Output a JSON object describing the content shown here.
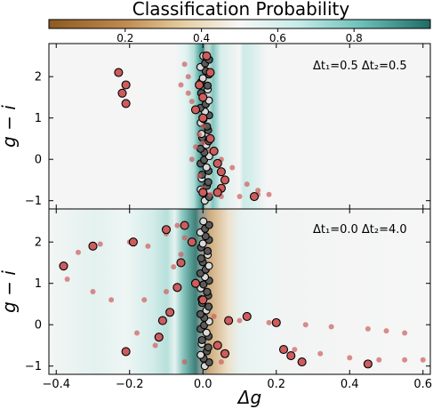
{
  "colorbar": {
    "title": "Classification Probability",
    "ticks": [
      0.2,
      0.4,
      0.6,
      0.8
    ],
    "tick_labels": [
      "0.2",
      "0.4",
      "0.6",
      "0.8"
    ],
    "range": [
      0.0,
      1.0
    ],
    "colormap_stops": [
      "#8c5a20",
      "#c08a50",
      "#e6cda0",
      "#f7f7f7",
      "#c8ece8",
      "#6cc0b8",
      "#1f6b66"
    ]
  },
  "panels": [
    {
      "id": "top",
      "annotation": "Δt₁=0.5 Δt₂=0.5",
      "ylabel": "g − i"
    },
    {
      "id": "bottom",
      "annotation": "Δt₁=0.0 Δt₂=4.0",
      "ylabel": "g − i"
    }
  ],
  "xlabel": "Δg",
  "x_tick_labels": [
    "−0.4",
    "−0.2",
    "0.0",
    "0.2",
    "0.4",
    "0.6"
  ],
  "y_tick_labels": [
    "−1",
    "0",
    "1",
    "2"
  ],
  "colors": {
    "track": "#cd5c5c",
    "marker_edge": "#000000",
    "light_marker": "#d9d9d9"
  },
  "chart_data": {
    "type": "scatter",
    "xlim": [
      -0.42,
      0.62
    ],
    "ylim": [
      -1.2,
      2.8
    ],
    "x_ticks": [
      -0.4,
      -0.2,
      0.0,
      0.2,
      0.4,
      0.6
    ],
    "y_ticks": [
      -1,
      0,
      1,
      2
    ],
    "panels": [
      {
        "annotation": "Δt₁=0.5 Δt₂=0.5",
        "background": "classification probability map; low-probability band near Δg≈0, high-probability band at Δg≈-0.05 to 0.02 and Δg≈0.14",
        "track_points": [
          [
            -0.05,
            2.3
          ],
          [
            -0.04,
            2.0
          ],
          [
            -0.06,
            1.8
          ],
          [
            -0.04,
            1.6
          ],
          [
            -0.03,
            1.4
          ],
          [
            -0.02,
            1.2
          ],
          [
            0.0,
            1.0
          ],
          [
            0.0,
            0.8
          ],
          [
            -0.01,
            0.6
          ],
          [
            0.0,
            0.4
          ],
          [
            0.02,
            0.2
          ],
          [
            0.05,
            0.0
          ],
          [
            0.08,
            -0.2
          ],
          [
            0.12,
            -0.6
          ],
          [
            0.15,
            -0.75
          ],
          [
            0.18,
            -0.85
          ],
          [
            -0.02,
            0.3
          ],
          [
            -0.03,
            0.0
          ],
          [
            -0.01,
            -0.4
          ],
          [
            0.0,
            -0.7
          ],
          [
            0.02,
            -0.85
          ],
          [
            0.05,
            -0.9
          ],
          [
            0.1,
            -0.9
          ],
          [
            0.15,
            -0.85
          ]
        ],
        "circled_points": [
          [
            0.01,
            2.5
          ],
          [
            0.02,
            2.1
          ],
          [
            -0.01,
            1.8
          ],
          [
            0.0,
            1.5
          ],
          [
            -0.02,
            1.2
          ],
          [
            0.0,
            1.0
          ],
          [
            0.02,
            0.5
          ],
          [
            0.03,
            0.2
          ],
          [
            0.04,
            -0.1
          ],
          [
            0.05,
            -0.3
          ],
          [
            0.06,
            -0.5
          ],
          [
            0.05,
            -0.7
          ],
          [
            0.04,
            -0.8
          ],
          [
            0.0,
            -0.8
          ],
          [
            0.14,
            -0.9
          ],
          [
            -0.21,
            1.35
          ],
          [
            -0.22,
            1.6
          ],
          [
            -0.21,
            1.8
          ],
          [
            -0.23,
            2.1
          ]
        ]
      },
      {
        "annotation": "Δt₁=0.0 Δt₂=4.0",
        "background": "classification probability map; brown band near Δg≈0.01-0.08, teal bands around Δg≈-0.07 to -0.02",
        "track_points": [
          [
            -0.38,
            1.4
          ],
          [
            -0.34,
            1.75
          ],
          [
            -0.28,
            1.95
          ],
          [
            -0.2,
            2.0
          ],
          [
            -0.15,
            1.9
          ],
          [
            -0.1,
            2.2
          ],
          [
            -0.07,
            2.4
          ],
          [
            -0.05,
            2.1
          ],
          [
            -0.06,
            1.7
          ],
          [
            -0.08,
            1.4
          ],
          [
            -0.1,
            0.8
          ],
          [
            -0.16,
            0.6
          ],
          [
            -0.25,
            0.6
          ],
          [
            -0.3,
            0.8
          ],
          [
            -0.37,
            1.1
          ],
          [
            0.03,
            0.2
          ],
          [
            0.1,
            0.1
          ],
          [
            0.18,
            0.05
          ],
          [
            0.28,
            0.0
          ],
          [
            0.35,
            -0.05
          ],
          [
            0.45,
            -0.1
          ],
          [
            0.5,
            -0.15
          ],
          [
            0.55,
            -0.2
          ],
          [
            0.25,
            -0.6
          ],
          [
            0.32,
            -0.7
          ],
          [
            0.4,
            -0.8
          ],
          [
            0.48,
            -0.85
          ],
          [
            0.55,
            -0.85
          ],
          [
            0.6,
            -0.85
          ],
          [
            0.05,
            -0.9
          ],
          [
            -0.05,
            -0.9
          ],
          [
            -0.13,
            -0.5
          ],
          [
            -0.18,
            -0.2
          ]
        ],
        "circled_points": [
          [
            -0.38,
            1.42
          ],
          [
            -0.3,
            1.9
          ],
          [
            -0.19,
            2.0
          ],
          [
            -0.1,
            2.3
          ],
          [
            -0.05,
            2.4
          ],
          [
            -0.03,
            2.0
          ],
          [
            -0.06,
            1.5
          ],
          [
            -0.02,
            1.0
          ],
          [
            0.0,
            0.6
          ],
          [
            -0.07,
            0.9
          ],
          [
            -0.09,
            0.3
          ],
          [
            -0.12,
            -0.3
          ],
          [
            -0.21,
            -0.65
          ],
          [
            -0.11,
            0.1
          ],
          [
            0.12,
            0.2
          ],
          [
            0.2,
            0.05
          ],
          [
            0.22,
            -0.6
          ],
          [
            0.24,
            -0.75
          ],
          [
            0.27,
            -0.9
          ],
          [
            0.45,
            -0.95
          ],
          [
            0.07,
            0.1
          ],
          [
            0.06,
            -0.7
          ],
          [
            0.04,
            -0.5
          ]
        ]
      }
    ]
  }
}
